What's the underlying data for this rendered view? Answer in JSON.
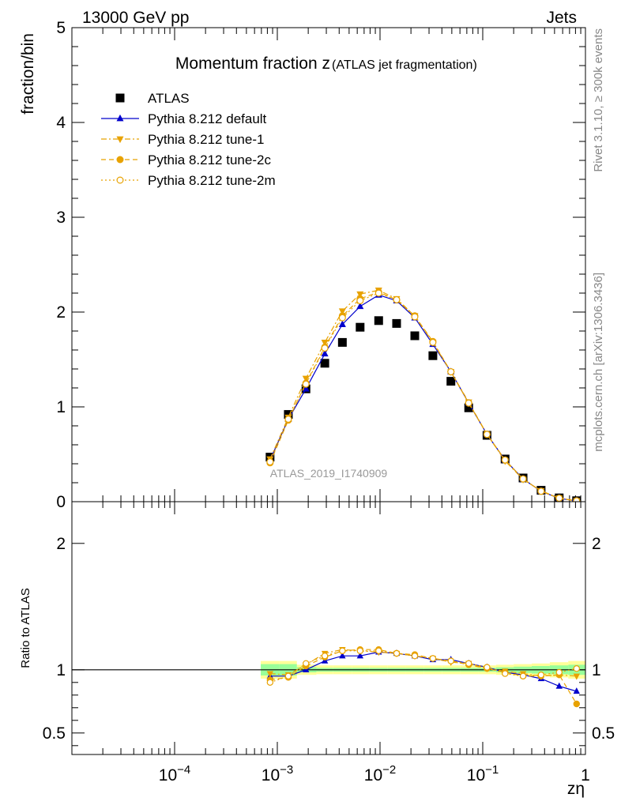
{
  "header": {
    "energy_label": "13000 GeV pp",
    "category_label": "Jets",
    "analysis_watermark": "ATLAS_2019_I1740909",
    "side_rivet": "Rivet 3.1.10, ≥ 300k events",
    "side_mcplots": "mcplots.cern.ch [arXiv:1306.3436]"
  },
  "chart_data": [
    {
      "type": "scatter",
      "title_main": "Momentum fraction z",
      "title_sub": "(ATLAS jet fragmentation)",
      "ylabel": "fraction/bin",
      "xscale": "log",
      "xlim": [
        1e-05,
        1
      ],
      "ylim": [
        0,
        5
      ],
      "yticks": [
        0,
        1,
        2,
        3,
        4,
        5
      ],
      "ytick_labels": [
        "0",
        "1",
        "2",
        "3",
        "4",
        "5"
      ],
      "legend_position": "top-left",
      "x": [
        0.00085,
        0.00128,
        0.0019,
        0.0029,
        0.0043,
        0.0064,
        0.0097,
        0.0145,
        0.0218,
        0.0327,
        0.049,
        0.073,
        0.11,
        0.165,
        0.247,
        0.37,
        0.555,
        0.82
      ],
      "series": [
        {
          "name": "ATLAS",
          "values": [
            0.47,
            0.92,
            1.19,
            1.46,
            1.68,
            1.84,
            1.91,
            1.88,
            1.75,
            1.54,
            1.27,
            0.99,
            0.7,
            0.45,
            0.25,
            0.12,
            0.04,
            0.01
          ],
          "color": "#000000",
          "marker": "square",
          "line": "none"
        },
        {
          "name": "Pythia 8.212 default",
          "values": [
            0.44,
            0.87,
            1.19,
            1.56,
            1.87,
            2.06,
            2.18,
            2.12,
            1.94,
            1.66,
            1.37,
            1.04,
            0.71,
            0.44,
            0.24,
            0.11,
            0.035,
            0.008
          ],
          "color": "#0000cc",
          "marker": "triangle-up",
          "line": "solid"
        },
        {
          "name": "Pythia 8.212 tune-1",
          "values": [
            0.45,
            0.89,
            1.3,
            1.68,
            2.01,
            2.19,
            2.23,
            2.14,
            1.96,
            1.68,
            1.37,
            1.05,
            0.71,
            0.43,
            0.235,
            0.115,
            0.038,
            0.0095
          ],
          "color": "#e8a200",
          "marker": "triangle-down",
          "line": "dash-dot"
        },
        {
          "name": "Pythia 8.212 tune-2c",
          "values": [
            0.41,
            0.86,
            1.25,
            1.63,
            1.96,
            2.14,
            2.21,
            2.13,
            1.96,
            1.69,
            1.37,
            1.04,
            0.71,
            0.44,
            0.24,
            0.11,
            0.036,
            0.007
          ],
          "color": "#e8a200",
          "marker": "circle",
          "line": "dashed"
        },
        {
          "name": "Pythia 8.212 tune-2m",
          "values": [
            0.42,
            0.87,
            1.24,
            1.62,
            1.94,
            2.12,
            2.2,
            2.13,
            1.95,
            1.68,
            1.37,
            1.04,
            0.71,
            0.44,
            0.24,
            0.11,
            0.037,
            0.009
          ],
          "color": "#e8a200",
          "marker": "circle-open",
          "line": "dotted"
        }
      ]
    },
    {
      "type": "line",
      "ylabel": "Ratio to ATLAS",
      "xlabel": "zη",
      "xscale": "log",
      "xlim": [
        1e-05,
        1
      ],
      "ylim": [
        0.33,
        2.33
      ],
      "yticks": [
        0.5,
        1,
        2
      ],
      "ytick_labels": [
        "0.5",
        "1",
        "2"
      ],
      "xticks": [
        0.0001,
        0.001,
        0.01,
        0.1,
        1
      ],
      "xtick_labels": [
        {
          "base": "10",
          "exp": "−4"
        },
        {
          "base": "10",
          "exp": "−3"
        },
        {
          "base": "10",
          "exp": "−2"
        },
        {
          "base": "10",
          "exp": "−1"
        },
        {
          "base": "1",
          "exp": ""
        }
      ],
      "reference_line": 1,
      "uncertainty_bands": {
        "x_edges": [
          0.00069,
          0.00104,
          0.00155,
          0.0024,
          0.0035,
          0.0053,
          0.0079,
          0.0119,
          0.0178,
          0.0266,
          0.04,
          0.06,
          0.09,
          0.135,
          0.2,
          0.3,
          0.45,
          0.68,
          1.0
        ],
        "outer_low": [
          0.93,
          0.93,
          0.96,
          0.965,
          0.965,
          0.965,
          0.965,
          0.965,
          0.965,
          0.965,
          0.965,
          0.965,
          0.965,
          0.96,
          0.955,
          0.95,
          0.94,
          0.93
        ],
        "outer_high": [
          1.07,
          1.07,
          1.04,
          1.035,
          1.035,
          1.035,
          1.035,
          1.035,
          1.035,
          1.035,
          1.035,
          1.035,
          1.035,
          1.04,
          1.045,
          1.05,
          1.06,
          1.07
        ],
        "inner_low": [
          0.955,
          0.955,
          0.98,
          0.985,
          0.985,
          0.985,
          0.985,
          0.985,
          0.985,
          0.985,
          0.985,
          0.985,
          0.985,
          0.98,
          0.975,
          0.97,
          0.965,
          0.96
        ],
        "inner_high": [
          1.045,
          1.045,
          1.02,
          1.015,
          1.015,
          1.015,
          1.015,
          1.015,
          1.015,
          1.015,
          1.015,
          1.015,
          1.015,
          1.02,
          1.025,
          1.03,
          1.035,
          1.04
        ],
        "outer_color": "#ffff99",
        "inner_color": "#99ff99"
      },
      "x": [
        0.00085,
        0.00128,
        0.0019,
        0.0029,
        0.0043,
        0.0064,
        0.0097,
        0.0145,
        0.0218,
        0.0327,
        0.049,
        0.073,
        0.11,
        0.165,
        0.247,
        0.37,
        0.555,
        0.82
      ],
      "series": [
        {
          "name": "Pythia 8.212 default",
          "values": [
            0.95,
            0.95,
            1.0,
            1.07,
            1.11,
            1.11,
            1.14,
            1.13,
            1.11,
            1.08,
            1.08,
            1.05,
            1.02,
            0.98,
            0.96,
            0.93,
            0.87,
            0.83
          ],
          "color": "#0000cc",
          "marker": "triangle-up",
          "line": "solid"
        },
        {
          "name": "Pythia 8.212 tune-1",
          "values": [
            0.97,
            0.96,
            1.04,
            1.13,
            1.16,
            1.15,
            1.14,
            1.13,
            1.11,
            1.09,
            1.06,
            1.05,
            1.01,
            0.99,
            0.97,
            0.95,
            0.96,
            0.95
          ],
          "color": "#e8a200",
          "marker": "triangle-down",
          "line": "dash-dot"
        },
        {
          "name": "Pythia 8.212 tune-2c",
          "values": [
            0.92,
            0.94,
            1.03,
            1.1,
            1.15,
            1.16,
            1.16,
            1.13,
            1.12,
            1.09,
            1.07,
            1.04,
            1.01,
            0.98,
            0.95,
            0.95,
            0.96,
            0.73
          ],
          "color": "#e8a200",
          "marker": "circle",
          "line": "dashed"
        },
        {
          "name": "Pythia 8.212 tune-2m",
          "values": [
            0.9,
            0.95,
            1.05,
            1.11,
            1.15,
            1.15,
            1.15,
            1.13,
            1.11,
            1.09,
            1.07,
            1.05,
            1.02,
            0.97,
            0.95,
            0.96,
            0.98,
            1.01
          ],
          "color": "#e8a200",
          "marker": "circle-open",
          "line": "dotted"
        }
      ]
    }
  ]
}
